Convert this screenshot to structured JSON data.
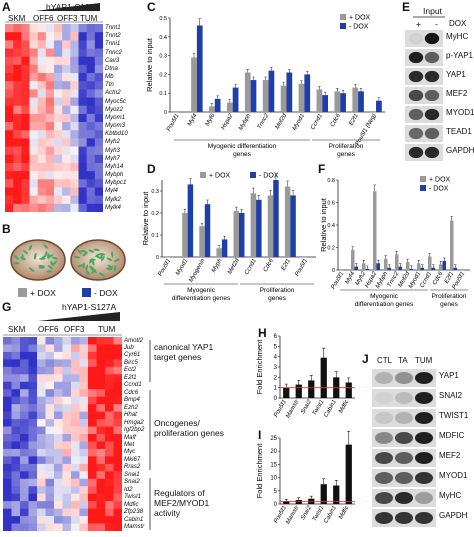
{
  "panel_labels": {
    "A": "A",
    "B": "B",
    "C": "C",
    "D": "D",
    "E": "E",
    "F": "F",
    "G": "G",
    "H": "H",
    "I": "I",
    "J": "J"
  },
  "panelA": {
    "construct": "hYAP1-S127A",
    "groups": [
      "SKM",
      "OFF6",
      "OFF3",
      "TUM"
    ],
    "genes": [
      "Tnnt1",
      "Tnnt2",
      "Tnni1",
      "Tnnc2",
      "Cav3",
      "Dtna",
      "Mb",
      "Ttn",
      "Actn2",
      "Myoc5c",
      "Myoz2",
      "Myom1",
      "Myom3",
      "Kbtbd10",
      "Myh2",
      "Myh3",
      "Myh7",
      "Myh14",
      "Mybph",
      "Mybpc1",
      "Myl4",
      "Mylk2",
      "Mylk4"
    ]
  },
  "panelB": {
    "plus_dox": "+ DOX",
    "minus_dox": "- DOX"
  },
  "panelC": {
    "ylabel": "Relative to input",
    "legend": [
      "+ DOX",
      "- DOX"
    ],
    "group_labels": [
      "Myogenic differentiation genes",
      "Proliferation genes"
    ],
    "colors": {
      "plus": "#9a9a9a",
      "minus": "#1f3fa8"
    }
  },
  "panelD": {
    "ylabel": "Relative to input",
    "legend": [
      "+ DOX",
      "- DOX"
    ],
    "group_labels": [
      "Myogenic differentiation genes",
      "Proliferation genes"
    ]
  },
  "panelF": {
    "ylabel": "Relative to input",
    "legend": [
      "+ DOX",
      "- DOX"
    ],
    "group_labels": [
      "Myogenic differentiation genes",
      "Proliferation genes"
    ]
  },
  "panelE": {
    "title": "Input",
    "dox_label": "DOX",
    "conditions": [
      "+",
      "-"
    ],
    "rows": [
      "MyHC",
      "p-YAP1",
      "YAP1",
      "MEF2",
      "MYOD1",
      "TEAD1",
      "GAPDH"
    ]
  },
  "panelG": {
    "construct": "hYAP1-S127A",
    "groups": [
      "SKM",
      "OFF6",
      "OFF3",
      "TUM"
    ],
    "genes": [
      "Amotl2",
      "Jub",
      "Cyr61",
      "Birc5",
      "Ect2",
      "E2f1",
      "Ccnd1",
      "Cdc6",
      "Bmp4",
      "Ezh2",
      "Hhat",
      "Hmga2",
      "Igf2bp2",
      "Maff",
      "Met",
      "Myc",
      "Mki67",
      "Rras2",
      "Snai1",
      "Snai2",
      "Id2",
      "Twist1",
      "Mdfic",
      "Zfp238",
      "Cabin1",
      "Mamstr"
    ],
    "categories": [
      "canonical YAP1 target genes",
      "Oncogenes/ proliferation genes",
      "Regulators of MEF2/MYOD1 activity"
    ]
  },
  "panelH": {
    "ylabel": "Fold Enrichment"
  },
  "panelI": {
    "ylabel": "Fold Enrichment"
  },
  "panelJ": {
    "lanes": [
      "CTL",
      "TA",
      "TUM"
    ],
    "rows": [
      "YAP1",
      "SNAI2",
      "TWIST1",
      "MDFIC",
      "MEF2",
      "MYOD1",
      "MyHC",
      "GAPDH"
    ]
  },
  "chart_data": [
    {
      "panel": "C",
      "type": "bar",
      "ylabel": "Relative to input",
      "categories": [
        "Pou5f1",
        "Myf4",
        "Myf6",
        "Hspa2",
        "Mybph",
        "Tnnc2",
        "Mef2d",
        "Myod1",
        "Ccnd1",
        "Cdc6",
        "E2f1",
        "Pou5f1 (Neg)"
      ],
      "series": [
        {
          "name": "+ DOX",
          "values": [
            0.0,
            0.29,
            0.03,
            0.05,
            0.21,
            0.17,
            0.14,
            0.15,
            0.12,
            0.11,
            0.13,
            0.0
          ]
        },
        {
          "name": "- DOX",
          "values": [
            0.0,
            0.46,
            0.07,
            0.13,
            0.17,
            0.22,
            0.21,
            0.2,
            0.09,
            0.1,
            0.11,
            0.06
          ]
        }
      ]
    },
    {
      "panel": "D",
      "type": "bar",
      "ylabel": "Relative to input",
      "categories": [
        "Pou5f1",
        "Myod1",
        "Myogenin",
        "Myph",
        "Mef2d",
        "Ccnd1",
        "Cdc6",
        "E2f1",
        "Pou5f1"
      ],
      "series": [
        {
          "name": "+ DOX",
          "values": [
            0.0,
            0.2,
            0.14,
            0.04,
            0.21,
            0.29,
            0.28,
            0.32,
            0.0
          ]
        },
        {
          "name": "- DOX",
          "values": [
            0.0,
            0.33,
            0.24,
            0.08,
            0.2,
            0.26,
            0.35,
            0.28,
            0.0
          ]
        }
      ]
    },
    {
      "panel": "F",
      "type": "bar",
      "ylabel": "Relative to input",
      "categories": [
        "Pou5f1",
        "Myf4",
        "Myh2",
        "Hspa2",
        "Mybph",
        "Tnnc2",
        "Mef2d",
        "Myod1",
        "Ccnd1",
        "Cdc6",
        "E2f1",
        "Pou5f1"
      ],
      "series": [
        {
          "name": "+ DOX",
          "values": [
            0.0,
            0.18,
            0.06,
            0.7,
            0.1,
            0.14,
            0.07,
            0.06,
            0.12,
            0.05,
            0.44,
            0.0
          ]
        },
        {
          "name": "- DOX",
          "values": [
            0.0,
            0.03,
            0.01,
            0.06,
            0.02,
            0.03,
            0.01,
            0.02,
            0.02,
            0.08,
            0.02,
            0.0
          ]
        }
      ]
    },
    {
      "panel": "H",
      "type": "bar",
      "ylabel": "Fold Enrichment",
      "ylim": [
        0,
        6
      ],
      "yticks": [
        0,
        1,
        2,
        3,
        4,
        5,
        6
      ],
      "categories": [
        "Pou5f1",
        "Mamstr",
        "Snai2",
        "Twist1",
        "Cabin1",
        "Mdfic"
      ],
      "values": [
        1.0,
        1.3,
        1.7,
        3.9,
        2.0,
        1.5
      ]
    },
    {
      "panel": "I",
      "type": "bar",
      "ylabel": "Fold Enrichment",
      "ylim": [
        0,
        25
      ],
      "yticks": [
        0,
        5,
        10,
        15,
        20,
        25
      ],
      "categories": [
        "Pou5f1",
        "Mamstr",
        "Snai2",
        "Twist1",
        "Cabin1",
        "Mdfic"
      ],
      "values": [
        1.0,
        1.5,
        2.0,
        7.5,
        7.0,
        22.5
      ]
    }
  ]
}
